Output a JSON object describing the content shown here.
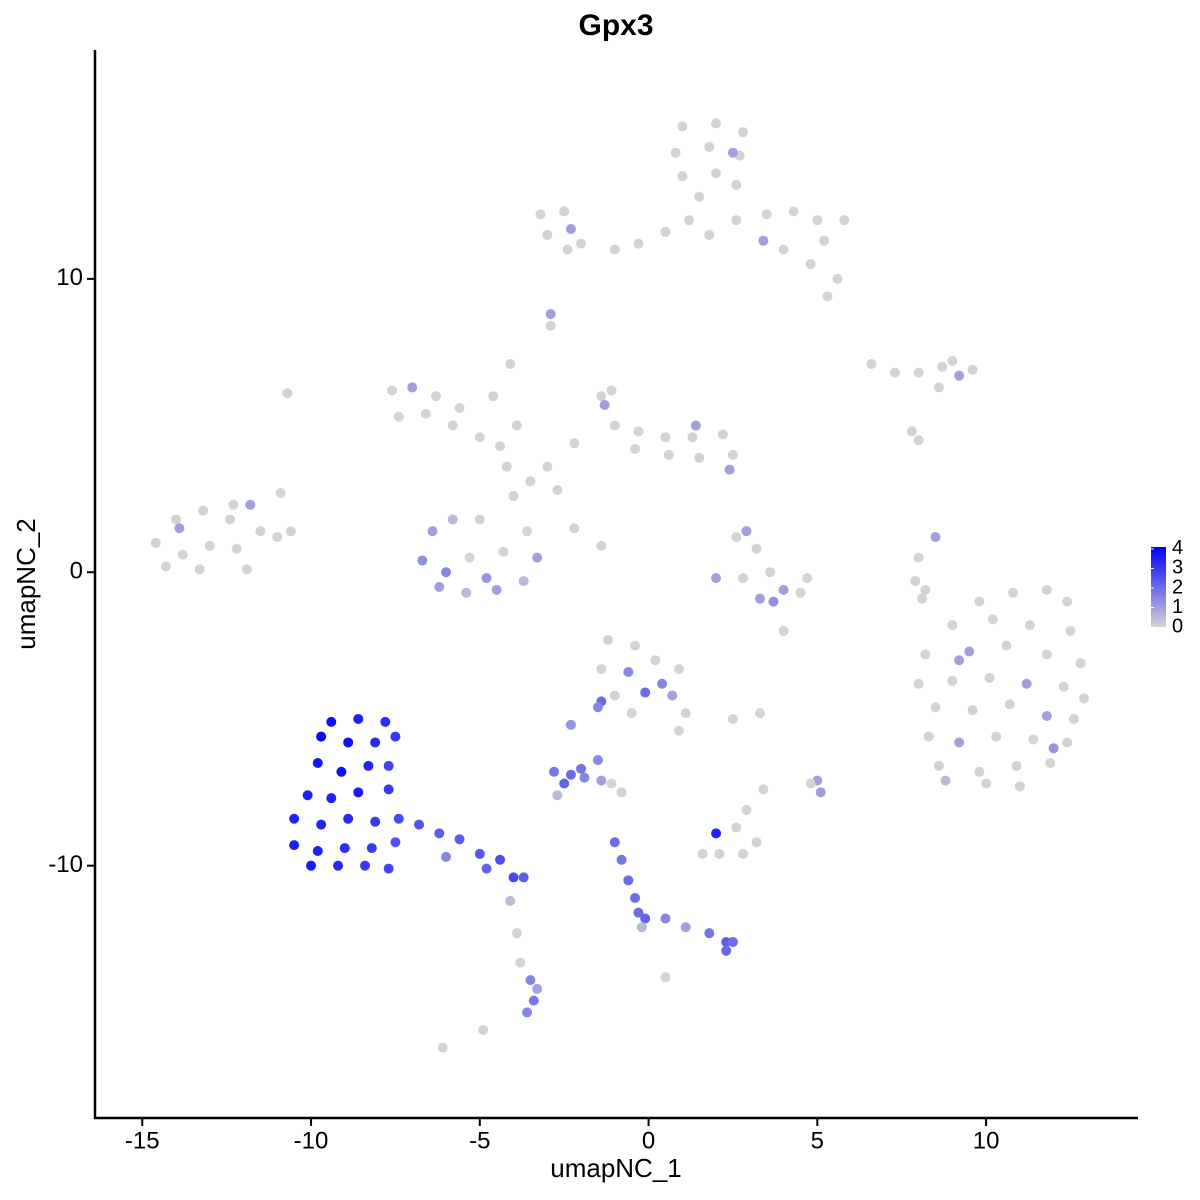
{
  "chart_data": {
    "type": "scatter",
    "title": "Gpx3",
    "x_label": "umapNC_1",
    "y_label": "umapNC_2",
    "xlim": [
      -16.4,
      14.5
    ],
    "ylim": [
      -18.6,
      17.8
    ],
    "xticks": [
      -15,
      -10,
      -5,
      0,
      5,
      10
    ],
    "yticks": [
      -10,
      0,
      10
    ],
    "grid": false,
    "legend_position": "right",
    "color_low": "#d3d3d3",
    "color_high": "#0000ff",
    "color_lim": [
      0,
      4.1
    ],
    "color_ticks": [
      0,
      1,
      2,
      3,
      4
    ],
    "x": [
      1.0,
      2.0,
      2.8,
      0.8,
      1.8,
      2.7,
      1.0,
      2.0,
      2.6,
      1.5,
      1.2,
      1.8,
      2.6,
      3.5,
      4.3,
      5.0,
      5.8,
      5.2,
      4.0,
      4.8,
      5.6,
      5.3,
      3.4,
      0.5,
      -0.3,
      -1.0,
      -2.0,
      -3.0,
      -3.2,
      -2.5,
      -2.4,
      2.5,
      -2.3,
      -2.9,
      -2.9,
      6.6,
      7.3,
      8.0,
      8.7,
      9.0,
      9.6,
      9.2,
      8.6,
      7.8,
      8.0,
      -7.6,
      -7.0,
      -6.3,
      -5.6,
      -7.4,
      -6.6,
      -5.8,
      -5.0,
      -4.4,
      -4.6,
      -4.1,
      -3.9,
      -4.2,
      -1.4,
      -1.0,
      -0.3,
      0.5,
      1.3,
      2.2,
      2.5,
      1.5,
      0.6,
      -0.4,
      -1.1,
      -2.2,
      -3.0,
      -3.5,
      -2.7,
      -4.0,
      1.4,
      2.4,
      -1.3,
      -2.2,
      -1.4,
      -6.4,
      -6.7,
      -6.2,
      -5.4,
      -4.5,
      -3.7,
      -3.3,
      -3.6,
      -5.0,
      -5.3,
      -4.3,
      -5.8,
      -4.8,
      -6.0,
      -14.6,
      -14.0,
      -13.2,
      -12.4,
      -13.8,
      -13.0,
      -12.2,
      -11.5,
      -11.0,
      -11.9,
      -13.3,
      -12.3,
      -13.9,
      -11.8,
      -14.3,
      -10.6,
      -10.9,
      -10.7,
      2.6,
      3.2,
      3.6,
      2.8,
      4.0,
      3.3,
      4.5,
      4.7,
      2.0,
      2.9,
      3.7,
      8.5,
      8.0,
      7.9,
      8.2,
      8.1,
      4.0,
      9.8,
      10.8,
      11.8,
      12.4,
      9.0,
      10.2,
      11.3,
      12.5,
      8.2,
      9.5,
      10.6,
      11.8,
      12.8,
      8.0,
      9.0,
      10.1,
      11.2,
      12.3,
      12.9,
      8.5,
      9.6,
      10.7,
      11.8,
      12.6,
      8.3,
      9.2,
      10.3,
      11.4,
      12.4,
      8.6,
      9.8,
      10.9,
      11.9,
      10.0,
      11.0,
      8.8,
      12.0,
      9.2,
      -1.2,
      -0.4,
      -1.4,
      -0.6,
      0.2,
      0.9,
      -1.0,
      -0.1,
      0.7,
      1.1,
      0.9,
      -0.5,
      -1.4,
      0.4,
      -9.4,
      -8.6,
      -7.8,
      -7.5,
      -9.7,
      -8.9,
      -8.1,
      -9.8,
      -9.1,
      -8.3,
      -7.7,
      -10.1,
      -9.4,
      -8.6,
      -7.7,
      -10.5,
      -9.7,
      -8.9,
      -8.1,
      -7.4,
      -6.8,
      -10.5,
      -9.8,
      -9.0,
      -8.2,
      -7.5,
      -10.0,
      -9.2,
      -8.4,
      -7.7,
      -6.2,
      -5.6,
      -5.0,
      -4.4,
      -4.0,
      -3.7,
      -6.0,
      -4.8,
      -4.1,
      -3.9,
      -3.8,
      -3.5,
      -3.4,
      -3.6,
      -3.3,
      -4.9,
      -6.1,
      -2.8,
      -2.3,
      -1.9,
      -2.5,
      -2.0,
      -2.7,
      -1.4,
      -1.5,
      -2.3,
      -1.5,
      -1.1,
      -0.8,
      -1.0,
      -0.8,
      -0.6,
      -0.4,
      -0.3,
      -0.1,
      0.5,
      1.1,
      1.8,
      2.3,
      2.5,
      2.3,
      -0.2,
      0.5,
      1.6,
      2.1,
      2.8,
      3.2,
      2.6,
      2.9,
      2.0,
      3.4,
      2.5,
      3.3,
      5.0,
      5.1,
      4.8
    ],
    "y": [
      15.2,
      15.3,
      15.0,
      14.3,
      14.5,
      14.2,
      13.5,
      13.6,
      13.2,
      12.8,
      12.0,
      11.5,
      12.0,
      12.2,
      12.3,
      12.0,
      12.0,
      11.3,
      11.0,
      10.5,
      10.0,
      9.4,
      11.3,
      11.6,
      11.2,
      11.0,
      11.2,
      11.5,
      12.2,
      12.3,
      11.0,
      14.3,
      11.7,
      8.8,
      8.4,
      7.1,
      6.8,
      6.8,
      7.0,
      7.2,
      6.9,
      6.7,
      6.3,
      4.8,
      4.5,
      6.2,
      6.3,
      6.0,
      5.6,
      5.3,
      5.4,
      5.0,
      4.6,
      4.3,
      6.0,
      7.1,
      5.0,
      3.6,
      6.0,
      5.0,
      4.8,
      4.6,
      4.6,
      4.7,
      4.0,
      3.9,
      4.0,
      4.2,
      6.2,
      4.4,
      3.6,
      3.1,
      2.8,
      2.6,
      5.0,
      3.5,
      5.7,
      1.5,
      0.9,
      1.4,
      0.4,
      -0.5,
      -0.7,
      -0.6,
      -0.3,
      0.5,
      1.4,
      1.8,
      0.5,
      0.7,
      1.8,
      -0.2,
      0.0,
      1.0,
      1.8,
      2.1,
      1.8,
      0.6,
      0.9,
      0.8,
      1.4,
      1.2,
      0.1,
      0.1,
      2.3,
      1.5,
      2.3,
      0.2,
      1.4,
      2.7,
      6.1,
      1.2,
      0.8,
      0.0,
      -0.2,
      -0.6,
      -0.9,
      -0.7,
      -0.2,
      -0.2,
      1.4,
      -1.0,
      1.2,
      0.5,
      -0.3,
      -0.6,
      -0.9,
      -2.0,
      -1.0,
      -0.7,
      -0.6,
      -1.0,
      -1.8,
      -1.6,
      -1.8,
      -2.0,
      -2.8,
      -2.7,
      -2.5,
      -2.8,
      -3.1,
      -3.8,
      -3.7,
      -3.6,
      -3.8,
      -3.9,
      -4.3,
      -4.6,
      -4.7,
      -4.5,
      -4.9,
      -5.0,
      -5.6,
      -5.8,
      -5.6,
      -5.7,
      -5.8,
      -6.6,
      -6.8,
      -6.6,
      -6.5,
      -7.2,
      -7.3,
      -7.1,
      -6.0,
      -3.0,
      -2.3,
      -2.5,
      -3.3,
      -3.4,
      -3.0,
      -3.3,
      -4.2,
      -4.1,
      -4.2,
      -4.8,
      -5.4,
      -4.8,
      -4.4,
      -3.8,
      -5.1,
      -5.0,
      -5.1,
      -5.6,
      -5.6,
      -5.8,
      -5.8,
      -6.5,
      -6.8,
      -6.6,
      -6.6,
      -7.6,
      -7.7,
      -7.5,
      -7.4,
      -8.4,
      -8.6,
      -8.4,
      -8.5,
      -8.4,
      -8.6,
      -9.3,
      -9.5,
      -9.4,
      -9.4,
      -9.2,
      -10.0,
      -10.0,
      -10.0,
      -10.1,
      -8.9,
      -9.1,
      -9.6,
      -9.8,
      -10.4,
      -10.4,
      -9.7,
      -10.1,
      -11.2,
      -12.3,
      -13.3,
      -13.9,
      -14.6,
      -15.0,
      -14.2,
      -15.6,
      -16.2,
      -6.8,
      -6.9,
      -7.0,
      -7.2,
      -6.7,
      -7.6,
      -7.1,
      -6.4,
      -5.2,
      -4.6,
      -7.2,
      -7.5,
      -9.2,
      -9.8,
      -10.5,
      -11.1,
      -11.6,
      -11.8,
      -11.8,
      -12.1,
      -12.3,
      -12.6,
      -12.6,
      -12.9,
      -12.1,
      -13.8,
      -9.6,
      -9.6,
      -9.6,
      -9.2,
      -8.7,
      -8.1,
      -8.9,
      -7.4,
      -5.0,
      -4.8,
      -7.1,
      -7.5,
      -7.2
    ],
    "values": [
      0,
      0,
      0,
      0,
      0,
      0,
      0,
      0,
      0,
      0,
      0,
      0,
      0,
      0,
      0,
      0,
      0,
      0,
      0,
      0,
      0,
      0,
      1,
      0,
      0,
      0,
      0,
      0,
      0,
      0,
      0,
      1,
      1,
      1,
      0,
      0,
      0,
      0,
      0,
      0,
      0,
      1,
      0,
      0,
      0,
      0,
      1,
      0,
      0,
      0,
      0,
      0,
      0,
      0,
      0,
      0,
      0,
      0,
      0,
      0,
      0,
      0,
      0,
      0,
      0,
      0,
      0,
      0,
      0,
      0,
      0,
      0,
      0,
      0,
      1,
      1,
      1,
      0,
      0,
      1,
      1.3,
      1,
      0.5,
      1,
      0.5,
      1,
      0,
      0,
      0,
      0,
      0.5,
      1.2,
      1.5,
      0,
      0,
      0,
      0,
      0,
      0,
      0,
      0,
      0,
      0,
      0,
      0,
      1,
      1,
      0,
      0,
      0,
      0,
      0,
      0,
      0,
      0,
      1,
      1,
      0,
      0,
      1,
      1,
      1.3,
      1,
      0,
      0,
      0,
      0,
      0,
      0,
      0,
      0,
      0,
      0,
      0,
      0,
      0,
      0,
      1,
      0,
      0,
      0,
      0,
      0,
      0,
      1,
      0,
      0,
      0,
      0,
      0,
      1,
      0,
      0,
      1,
      0,
      0,
      0,
      0,
      0,
      0,
      0,
      0,
      0,
      0.5,
      1.2,
      1,
      0,
      0,
      0,
      1.5,
      0,
      0,
      0,
      2,
      1,
      0,
      0,
      0,
      2,
      1.5,
      3.8,
      3.5,
      3.2,
      3,
      4,
      3.8,
      3.3,
      3.7,
      3.8,
      3.4,
      2.8,
      3.5,
      3.5,
      3.6,
      3,
      3.4,
      3.4,
      3.3,
      3,
      2.7,
      2.5,
      3.5,
      3.5,
      3.2,
      3,
      2.5,
      3.6,
      3.3,
      3,
      2.8,
      2.3,
      2.3,
      2.4,
      2.6,
      2.7,
      2.3,
      1.5,
      2.2,
      0.5,
      0,
      0,
      1.5,
      1.8,
      1.5,
      1,
      0,
      0,
      1.8,
      2,
      1.5,
      2.2,
      1.8,
      0.5,
      1,
      1.5,
      1.2,
      1.5,
      0,
      0,
      2,
      1.8,
      2,
      2,
      2,
      2.2,
      1.5,
      1,
      1.8,
      2.3,
      2,
      2.1,
      0.5,
      0,
      0,
      0,
      0,
      0,
      0,
      0,
      3.5,
      0,
      0,
      0,
      1,
      1,
      0
    ]
  }
}
